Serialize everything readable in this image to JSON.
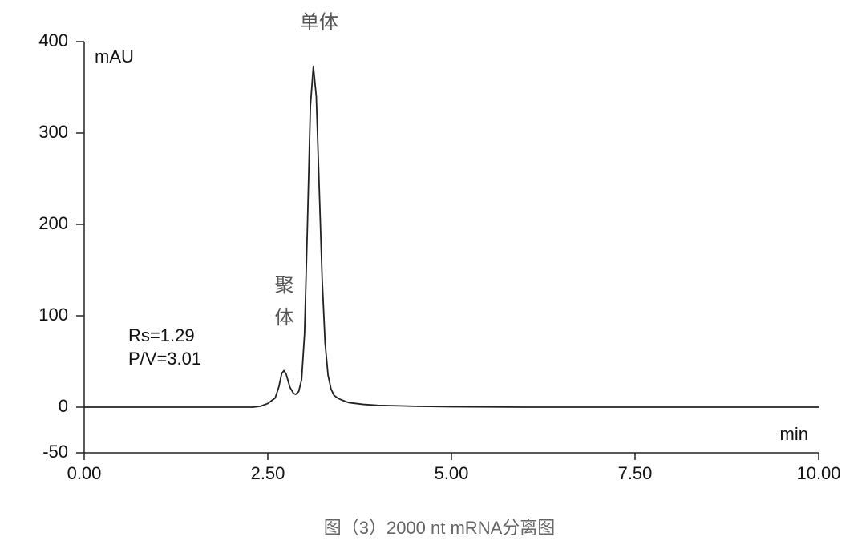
{
  "chart_data": {
    "type": "line",
    "caption": "图（3）2000 nt mRNA分离图",
    "y_unit": "mAU",
    "x_label": "min",
    "peak_labels": [
      "单体",
      "聚体"
    ],
    "annotations": [
      "Rs=1.29",
      "P/V=3.01"
    ],
    "x": [
      0,
      2.0,
      2.3,
      2.4,
      2.5,
      2.55,
      2.6,
      2.65,
      2.69,
      2.72,
      2.75,
      2.8,
      2.85,
      2.88,
      2.92,
      2.96,
      3.0,
      3.04,
      3.08,
      3.12,
      3.16,
      3.2,
      3.24,
      3.28,
      3.32,
      3.36,
      3.4,
      3.45,
      3.5,
      3.6,
      3.8,
      4.0,
      4.5,
      5.0,
      6.0,
      10.0
    ],
    "values": [
      0,
      0,
      0,
      1,
      4,
      7,
      10,
      22,
      37,
      40,
      36,
      22,
      15,
      14,
      17,
      30,
      80,
      200,
      330,
      373,
      340,
      240,
      140,
      70,
      35,
      20,
      13,
      10,
      8,
      5,
      3,
      2,
      1,
      0.5,
      0,
      0
    ],
    "color": "#222222",
    "xlim": [
      0,
      10
    ],
    "ylim": [
      -50,
      400
    ],
    "xticks": [
      {
        "value": 0,
        "label": "0.00"
      },
      {
        "value": 2.5,
        "label": "2.50"
      },
      {
        "value": 5,
        "label": "5.00"
      },
      {
        "value": 7.5,
        "label": "7.50"
      },
      {
        "value": 10,
        "label": "10.00"
      }
    ],
    "yticks": [
      -50,
      0,
      100,
      200,
      300,
      400
    ]
  }
}
